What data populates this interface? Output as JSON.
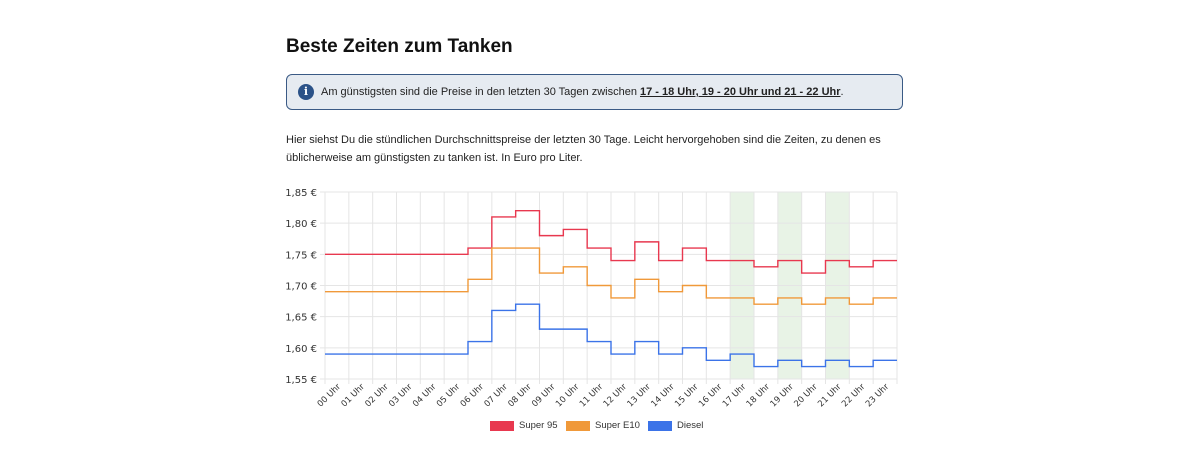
{
  "page": {
    "title": "Beste Zeiten zum Tanken",
    "info": {
      "text_before": "Am günstigsten sind die Preise in den letzten 30 Tagen zwischen ",
      "highlight": "17 - 18 Uhr, 19 - 20 Uhr und 21 - 22 Uhr",
      "text_after": "."
    },
    "description": "Hier siehst Du die stündlichen Durchschnittspreise der letzten 30 Tage. Leicht hervorgehoben sind die Zeiten, zu denen es üblicherweise am günstigsten zu tanken ist. In Euro pro Liter."
  },
  "chart_data": {
    "type": "line",
    "step": true,
    "categories": [
      "00 Uhr",
      "01 Uhr",
      "02 Uhr",
      "03 Uhr",
      "04 Uhr",
      "05 Uhr",
      "06 Uhr",
      "07 Uhr",
      "08 Uhr",
      "09 Uhr",
      "10 Uhr",
      "11 Uhr",
      "12 Uhr",
      "13 Uhr",
      "14 Uhr",
      "15 Uhr",
      "16 Uhr",
      "17 Uhr",
      "18 Uhr",
      "19 Uhr",
      "20 Uhr",
      "21 Uhr",
      "22 Uhr",
      "23 Uhr"
    ],
    "y_ticks": [
      "1,85 €",
      "1,80 €",
      "1,75 €",
      "1,70 €",
      "1,65 €",
      "1,60 €",
      "1,55 €"
    ],
    "ylim": [
      1.55,
      1.85
    ],
    "grid": true,
    "highlight_hours": [
      "17 Uhr",
      "19 Uhr",
      "21 Uhr"
    ],
    "legend_position": "bottom",
    "series": [
      {
        "name": "Super 95",
        "color": "#e8384f",
        "values": [
          1.75,
          1.75,
          1.75,
          1.75,
          1.75,
          1.75,
          1.76,
          1.81,
          1.82,
          1.78,
          1.79,
          1.76,
          1.74,
          1.77,
          1.74,
          1.76,
          1.74,
          1.74,
          1.73,
          1.74,
          1.72,
          1.74,
          1.73,
          1.74
        ]
      },
      {
        "name": "Super E10",
        "color": "#f0993a",
        "values": [
          1.69,
          1.69,
          1.69,
          1.69,
          1.69,
          1.69,
          1.71,
          1.76,
          1.76,
          1.72,
          1.73,
          1.7,
          1.68,
          1.71,
          1.69,
          1.7,
          1.68,
          1.68,
          1.67,
          1.68,
          1.67,
          1.68,
          1.67,
          1.68
        ]
      },
      {
        "name": "Diesel",
        "color": "#3b73e8",
        "values": [
          1.59,
          1.59,
          1.59,
          1.59,
          1.59,
          1.59,
          1.61,
          1.66,
          1.67,
          1.63,
          1.63,
          1.61,
          1.59,
          1.61,
          1.59,
          1.6,
          1.58,
          1.59,
          1.57,
          1.58,
          1.57,
          1.58,
          1.57,
          1.58
        ]
      }
    ]
  }
}
